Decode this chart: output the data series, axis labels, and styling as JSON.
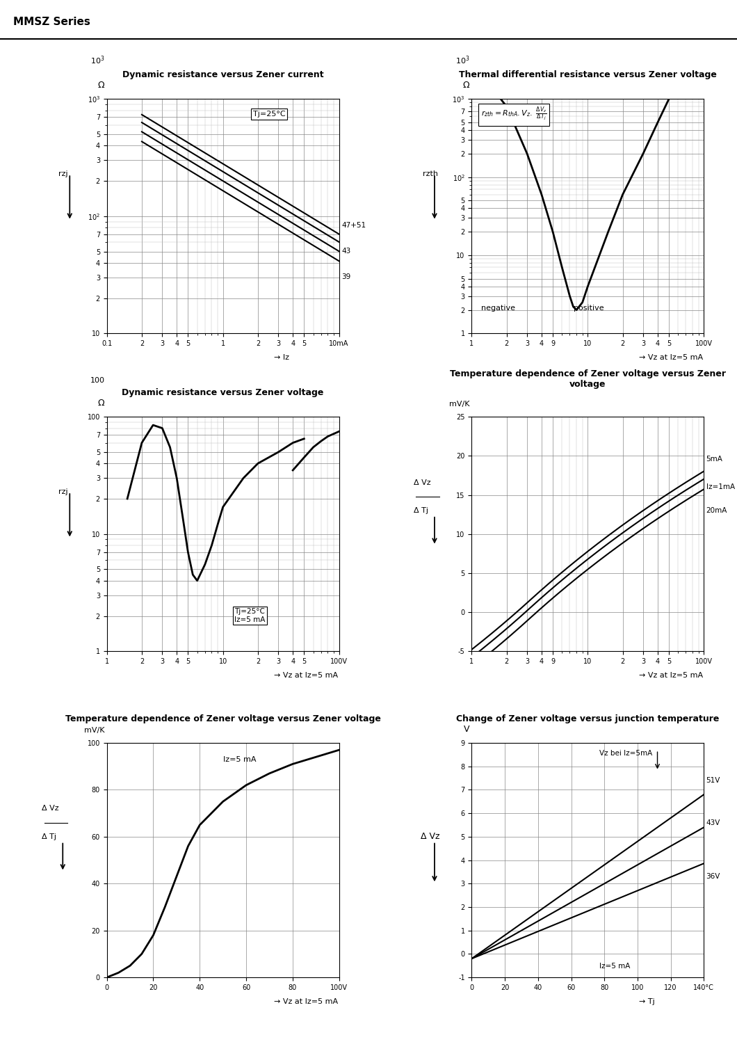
{
  "title": "MMSZ Series",
  "graph1_title": "Dynamic resistance versus Zener current",
  "graph2_title": "Thermal differential resistance versus Zener voltage",
  "graph3_title": "Dynamic resistance versus Zener voltage",
  "graph4_title": "Temperature dependence of Zener voltage versus Zener\nvoltage",
  "graph5_title": "Temperature dependence of Zener voltage versus Zener voltage",
  "graph6_title": "Change of Zener voltage versus junction temperature",
  "graph1_xlabel": "Iz",
  "graph1_ylabel": "rzj",
  "graph1_annotation": "Tj=25°C",
  "graph1_labels": [
    "47+51",
    "43",
    "39"
  ],
  "graph2_xlabel": "Vz at Iz=5 mA",
  "graph2_ylabel": "rzth",
  "graph2_annotation_left": "rzth=RthA.Vz.",
  "graph2_annotation_frac_top": "Δ Vz",
  "graph2_annotation_frac_bot": "Δ Tj",
  "graph2_labels": [
    "negative",
    "positive"
  ],
  "graph3_xlabel": "Vz at Iz=5 mA",
  "graph3_ylabel": "rzj",
  "graph3_annotation": "Tj=25°C\nIz=5 mA",
  "graph4_xlabel": "Vz at Iz=5 mA",
  "graph4_ylabel": "Δ Vz\nΔ Tj",
  "graph4_ylabel_unit": "mV/K",
  "graph4_labels": [
    "5mA",
    "Iz=1mA",
    "20mA"
  ],
  "graph5_xlabel": "Vz at Iz=5 mA",
  "graph5_ylabel": "Δ Vz\nΔ Tj",
  "graph5_ylabel_unit": "mV/K",
  "graph5_annotation": "Iz=5 mA",
  "graph5_ylabel_text": "mV/K",
  "graph6_xlabel": "Tj",
  "graph6_ylabel": "Δ Vz",
  "graph6_annotation": "Vz bei Iz=5mA",
  "graph6_labels": [
    "51V",
    "43V",
    "36V"
  ],
  "graph6_footer": "Iz=5 mA"
}
